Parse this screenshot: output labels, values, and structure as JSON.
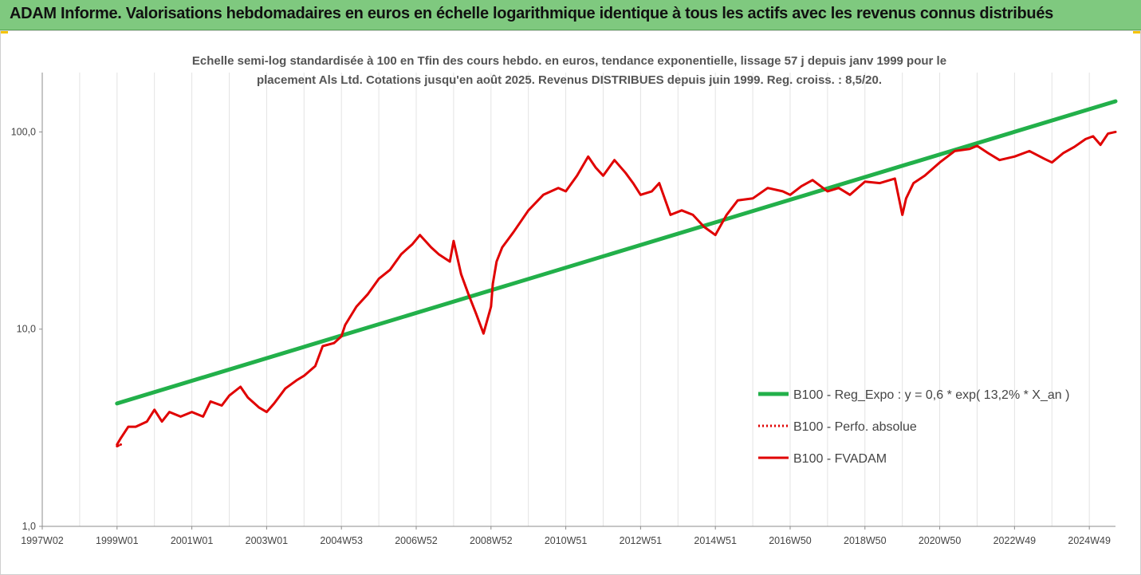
{
  "header": {
    "title": "ADAM Informe. Valorisations hebdomadaires en euros en échelle logarithmique identique à tous les actifs avec les revenus connus distribués"
  },
  "colors": {
    "banner_bg": "#7fc97f",
    "regression": "#22b04a",
    "fund": "#e00000",
    "grid": "#e3e3e3",
    "corner": "#f5c400"
  },
  "chart_data": {
    "type": "line",
    "subtitle_lines": [
      "Echelle semi-log standardisée à 100 en Tfin des cours hebdo. en euros, tendance exponentielle, lissage 57 j depuis janv 1999 pour le",
      "placement Als Ltd. Cotations jusqu'en août 2025. Revenus DISTRIBUES depuis juin 1999. Reg. croiss. : 8,5/20."
    ],
    "y_scale": "log",
    "ylim": [
      1,
      200
    ],
    "y_ticks": [
      {
        "value": 1,
        "label": "1,0"
      },
      {
        "value": 10,
        "label": "10,0"
      },
      {
        "value": 100,
        "label": "100,0"
      }
    ],
    "xlim": [
      1997.0,
      2025.7
    ],
    "x_ticks": [
      {
        "value": 1997.0,
        "label": "1997W02"
      },
      {
        "value": 1999.0,
        "label": "1999W01"
      },
      {
        "value": 2001.0,
        "label": "2001W01"
      },
      {
        "value": 2003.0,
        "label": "2003W01"
      },
      {
        "value": 2005.0,
        "label": "2004W53"
      },
      {
        "value": 2007.0,
        "label": "2006W52"
      },
      {
        "value": 2009.0,
        "label": "2008W52"
      },
      {
        "value": 2011.0,
        "label": "2010W51"
      },
      {
        "value": 2013.0,
        "label": "2012W51"
      },
      {
        "value": 2015.0,
        "label": "2014W51"
      },
      {
        "value": 2017.0,
        "label": "2016W50"
      },
      {
        "value": 2019.0,
        "label": "2018W50"
      },
      {
        "value": 2021.0,
        "label": "2020W50"
      },
      {
        "value": 2023.0,
        "label": "2022W49"
      },
      {
        "value": 2025.0,
        "label": "2024W49"
      }
    ],
    "grid": true,
    "legend_position": "bottom-right",
    "series": [
      {
        "name": "B100 - Reg_Expo : y = 0,6 * exp( 13,2% *  X_an )",
        "style": "solid-thick",
        "x": [
          1999.0,
          2025.7
        ],
        "y": [
          4.2,
          143
        ]
      },
      {
        "name": "B100 - Perfo. absolue",
        "style": "dotted",
        "x": [
          1999.0,
          1999.1
        ],
        "y": [
          2.55,
          2.6
        ]
      },
      {
        "name": "B100 - FVADAM",
        "style": "solid",
        "x": [
          1999.0,
          1999.1,
          1999.3,
          1999.5,
          1999.8,
          2000.0,
          2000.2,
          2000.4,
          2000.7,
          2001.0,
          2001.3,
          2001.5,
          2001.8,
          2002.0,
          2002.3,
          2002.5,
          2002.8,
          2003.0,
          2003.2,
          2003.5,
          2003.8,
          2004.0,
          2004.3,
          2004.5,
          2004.8,
          2005.0,
          2005.1,
          2005.4,
          2005.7,
          2006.0,
          2006.3,
          2006.6,
          2006.9,
          2007.1,
          2007.4,
          2007.6,
          2007.9,
          2008.0,
          2008.2,
          2008.4,
          2008.6,
          2008.8,
          2009.0,
          2009.05,
          2009.15,
          2009.3,
          2009.6,
          2010.0,
          2010.4,
          2010.8,
          2011.0,
          2011.3,
          2011.6,
          2011.8,
          2012.0,
          2012.3,
          2012.6,
          2012.8,
          2013.0,
          2013.3,
          2013.5,
          2013.8,
          2014.1,
          2014.4,
          2014.7,
          2015.0,
          2015.3,
          2015.6,
          2016.0,
          2016.4,
          2016.8,
          2017.0,
          2017.3,
          2017.6,
          2018.0,
          2018.3,
          2018.6,
          2019.0,
          2019.4,
          2019.8,
          2020.0,
          2020.1,
          2020.3,
          2020.6,
          2021.0,
          2021.4,
          2021.8,
          2022.0,
          2022.3,
          2022.6,
          2023.0,
          2023.4,
          2023.8,
          2024.0,
          2024.3,
          2024.6,
          2024.9,
          2025.1,
          2025.3,
          2025.5,
          2025.7
        ],
        "y": [
          2.6,
          2.8,
          3.2,
          3.2,
          3.4,
          3.9,
          3.4,
          3.8,
          3.6,
          3.8,
          3.6,
          4.3,
          4.1,
          4.6,
          5.1,
          4.5,
          4.0,
          3.8,
          4.2,
          5.0,
          5.5,
          5.8,
          6.5,
          8.2,
          8.5,
          9.2,
          10.5,
          13.0,
          15.0,
          18.0,
          20.0,
          24.0,
          27.0,
          30.0,
          26.0,
          24.0,
          22.0,
          28.0,
          19.0,
          15.0,
          12.0,
          9.5,
          13.0,
          17.0,
          22.0,
          26.0,
          31.0,
          40.0,
          48.0,
          52.0,
          50.0,
          60.0,
          75.0,
          66.0,
          60.0,
          72.0,
          62.0,
          55.0,
          48.0,
          50.0,
          55.0,
          38.0,
          40.0,
          38.0,
          33.0,
          30.0,
          38.0,
          45.0,
          46.0,
          52.0,
          50.0,
          48.0,
          53.0,
          57.0,
          50.0,
          52.0,
          48.0,
          56.0,
          55.0,
          58.0,
          38.0,
          46.0,
          55.0,
          60.0,
          70.0,
          80.0,
          82.0,
          85.0,
          78.0,
          72.0,
          75.0,
          80.0,
          73.0,
          70.0,
          78.0,
          84.0,
          92.0,
          95.0,
          86.0,
          98.0,
          100.0
        ]
      }
    ]
  }
}
